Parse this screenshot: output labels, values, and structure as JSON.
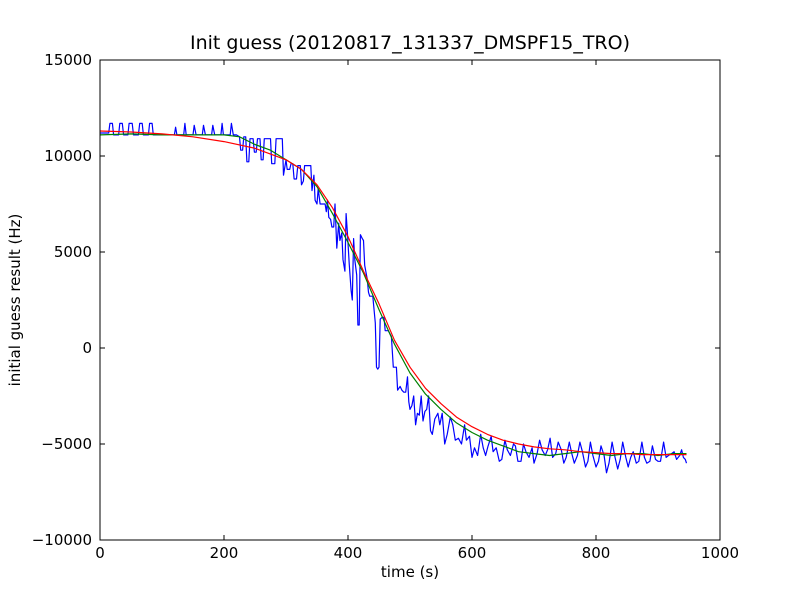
{
  "chart_data": {
    "type": "line",
    "title": "Init guess (20120817_131337_DMSPF15_TRO)",
    "xlabel": "time (s)",
    "ylabel": "initial guess result (Hz)",
    "xlim": [
      0,
      1000
    ],
    "ylim": [
      -10000,
      15000
    ],
    "x_ticks": [
      0,
      200,
      400,
      600,
      800,
      1000
    ],
    "y_ticks": [
      -10000,
      -5000,
      0,
      5000,
      10000,
      15000
    ],
    "x_tick_labels": [
      "0",
      "200",
      "400",
      "600",
      "800",
      "1000"
    ],
    "y_tick_labels": [
      "−10000",
      "−5000",
      "0",
      "5000",
      "10000",
      "15000"
    ],
    "grid": false,
    "legend": "none",
    "series": [
      {
        "color": "#0000ff",
        "points": [
          [
            0,
            11200
          ],
          [
            14,
            11200
          ],
          [
            16,
            11700
          ],
          [
            20,
            11700
          ],
          [
            22,
            11100
          ],
          [
            30,
            11100
          ],
          [
            32,
            11700
          ],
          [
            36,
            11700
          ],
          [
            38,
            11100
          ],
          [
            45,
            11100
          ],
          [
            47,
            11700
          ],
          [
            52,
            11700
          ],
          [
            54,
            11100
          ],
          [
            62,
            11100
          ],
          [
            64,
            11700
          ],
          [
            68,
            11700
          ],
          [
            70,
            11100
          ],
          [
            78,
            11100
          ],
          [
            80,
            11700
          ],
          [
            84,
            11700
          ],
          [
            86,
            11100
          ],
          [
            120,
            11100
          ],
          [
            122,
            11500
          ],
          [
            124,
            11100
          ],
          [
            135,
            11100
          ],
          [
            137,
            11700
          ],
          [
            139,
            11100
          ],
          [
            150,
            11100
          ],
          [
            152,
            11600
          ],
          [
            155,
            11100
          ],
          [
            165,
            11100
          ],
          [
            167,
            11600
          ],
          [
            170,
            11100
          ],
          [
            180,
            11100
          ],
          [
            182,
            11600
          ],
          [
            185,
            11100
          ],
          [
            195,
            11100
          ],
          [
            197,
            11700
          ],
          [
            199,
            11100
          ],
          [
            210,
            11100
          ],
          [
            212,
            11700
          ],
          [
            215,
            11100
          ],
          [
            220,
            11100
          ],
          [
            225,
            11000
          ],
          [
            227,
            10300
          ],
          [
            230,
            10300
          ],
          [
            232,
            11000
          ],
          [
            235,
            11000
          ],
          [
            237,
            9700
          ],
          [
            240,
            9700
          ],
          [
            242,
            10900
          ],
          [
            247,
            10900
          ],
          [
            249,
            10200
          ],
          [
            252,
            10200
          ],
          [
            254,
            10900
          ],
          [
            258,
            10900
          ],
          [
            260,
            9800
          ],
          [
            263,
            9800
          ],
          [
            265,
            10900
          ],
          [
            275,
            10900
          ],
          [
            277,
            9600
          ],
          [
            282,
            9600
          ],
          [
            284,
            10900
          ],
          [
            294,
            10900
          ],
          [
            296,
            9000
          ],
          [
            300,
            9800
          ],
          [
            302,
            9300
          ],
          [
            306,
            9300
          ],
          [
            308,
            9600
          ],
          [
            311,
            9600
          ],
          [
            313,
            8800
          ],
          [
            317,
            8800
          ],
          [
            319,
            9500
          ],
          [
            323,
            9500
          ],
          [
            325,
            8500
          ],
          [
            328,
            8700
          ],
          [
            330,
            9500
          ],
          [
            340,
            9500
          ],
          [
            342,
            8200
          ],
          [
            345,
            9000
          ],
          [
            347,
            7700
          ],
          [
            350,
            7500
          ],
          [
            352,
            8300
          ],
          [
            355,
            7500
          ],
          [
            363,
            7500
          ],
          [
            365,
            7100
          ],
          [
            367,
            7700
          ],
          [
            369,
            6800
          ],
          [
            372,
            6700
          ],
          [
            374,
            6300
          ],
          [
            377,
            6300
          ],
          [
            379,
            7500
          ],
          [
            382,
            5200
          ],
          [
            385,
            6500
          ],
          [
            387,
            5600
          ],
          [
            390,
            6000
          ],
          [
            392,
            4600
          ],
          [
            395,
            4000
          ],
          [
            397,
            7000
          ],
          [
            399,
            6000
          ],
          [
            402,
            4400
          ],
          [
            405,
            3000
          ],
          [
            407,
            2500
          ],
          [
            409,
            5700
          ],
          [
            411,
            4600
          ],
          [
            414,
            3800
          ],
          [
            416,
            1200
          ],
          [
            418,
            1200
          ],
          [
            420,
            5900
          ],
          [
            423,
            5700
          ],
          [
            425,
            5600
          ],
          [
            427,
            4300
          ],
          [
            431,
            3600
          ],
          [
            433,
            2900
          ],
          [
            435,
            2700
          ],
          [
            440,
            2700
          ],
          [
            444,
            1300
          ],
          [
            446,
            -1000
          ],
          [
            448,
            -1100
          ],
          [
            450,
            -1000
          ],
          [
            452,
            1500
          ],
          [
            455,
            1600
          ],
          [
            458,
            1600
          ],
          [
            460,
            900
          ],
          [
            465,
            900
          ],
          [
            470,
            600
          ],
          [
            473,
            -1000
          ],
          [
            478,
            -1000
          ],
          [
            480,
            -2200
          ],
          [
            484,
            -2000
          ],
          [
            487,
            -2200
          ],
          [
            490,
            -2300
          ],
          [
            493,
            -2300
          ],
          [
            496,
            -1500
          ],
          [
            498,
            -2800
          ],
          [
            500,
            -3200
          ],
          [
            503,
            -3000
          ],
          [
            506,
            -2500
          ],
          [
            509,
            -4000
          ],
          [
            512,
            -3400
          ],
          [
            515,
            -3500
          ],
          [
            518,
            -2500
          ],
          [
            521,
            -3800
          ],
          [
            524,
            -3300
          ],
          [
            527,
            -3200
          ],
          [
            530,
            -2500
          ],
          [
            533,
            -4300
          ],
          [
            536,
            -4500
          ],
          [
            540,
            -3700
          ],
          [
            545,
            -3400
          ],
          [
            548,
            -4000
          ],
          [
            552,
            -3400
          ],
          [
            556,
            -5000
          ],
          [
            560,
            -4500
          ],
          [
            565,
            -3600
          ],
          [
            569,
            -4000
          ],
          [
            573,
            -4800
          ],
          [
            578,
            -4700
          ],
          [
            583,
            -5000
          ],
          [
            588,
            -4000
          ],
          [
            591,
            -4800
          ],
          [
            596,
            -4600
          ],
          [
            600,
            -5700
          ],
          [
            604,
            -5200
          ],
          [
            609,
            -5600
          ],
          [
            614,
            -4500
          ],
          [
            618,
            -5200
          ],
          [
            622,
            -5600
          ],
          [
            626,
            -5100
          ],
          [
            631,
            -4600
          ],
          [
            634,
            -5400
          ],
          [
            639,
            -5200
          ],
          [
            644,
            -5900
          ],
          [
            648,
            -5800
          ],
          [
            653,
            -4800
          ],
          [
            657,
            -5300
          ],
          [
            662,
            -5600
          ],
          [
            667,
            -5000
          ],
          [
            670,
            -5100
          ],
          [
            674,
            -5900
          ],
          [
            679,
            -5900
          ],
          [
            683,
            -5000
          ],
          [
            687,
            -5400
          ],
          [
            692,
            -5700
          ],
          [
            697,
            -5200
          ],
          [
            700,
            -6000
          ],
          [
            705,
            -5500
          ],
          [
            709,
            -4800
          ],
          [
            713,
            -5300
          ],
          [
            718,
            -5600
          ],
          [
            722,
            -5300
          ],
          [
            726,
            -4700
          ],
          [
            730,
            -5700
          ],
          [
            735,
            -5500
          ],
          [
            739,
            -4900
          ],
          [
            744,
            -5300
          ],
          [
            748,
            -6000
          ],
          [
            752,
            -5700
          ],
          [
            757,
            -4900
          ],
          [
            761,
            -5500
          ],
          [
            765,
            -6000
          ],
          [
            770,
            -5600
          ],
          [
            774,
            -4900
          ],
          [
            778,
            -5400
          ],
          [
            783,
            -6200
          ],
          [
            787,
            -5900
          ],
          [
            791,
            -4900
          ],
          [
            795,
            -5600
          ],
          [
            800,
            -6200
          ],
          [
            804,
            -5900
          ],
          [
            808,
            -5100
          ],
          [
            813,
            -5600
          ],
          [
            817,
            -6500
          ],
          [
            821,
            -6000
          ],
          [
            826,
            -4900
          ],
          [
            830,
            -5600
          ],
          [
            835,
            -6300
          ],
          [
            839,
            -5800
          ],
          [
            843,
            -4900
          ],
          [
            848,
            -5700
          ],
          [
            852,
            -6200
          ],
          [
            856,
            -5700
          ],
          [
            860,
            -5400
          ],
          [
            865,
            -6000
          ],
          [
            869,
            -5900
          ],
          [
            874,
            -4900
          ],
          [
            878,
            -5700
          ],
          [
            882,
            -6000
          ],
          [
            887,
            -5900
          ],
          [
            891,
            -5100
          ],
          [
            896,
            -5800
          ],
          [
            900,
            -5900
          ],
          [
            904,
            -5900
          ],
          [
            909,
            -4900
          ],
          [
            913,
            -5700
          ],
          [
            917,
            -5600
          ],
          [
            922,
            -5500
          ],
          [
            926,
            -5400
          ],
          [
            930,
            -5800
          ],
          [
            935,
            -5600
          ],
          [
            938,
            -5300
          ],
          [
            941,
            -5700
          ],
          [
            944,
            -5800
          ],
          [
            946,
            -6000
          ]
        ]
      },
      {
        "color": "#008000",
        "points": [
          [
            0,
            11100
          ],
          [
            50,
            11150
          ],
          [
            100,
            11100
          ],
          [
            150,
            11100
          ],
          [
            200,
            11100
          ],
          [
            225,
            11000
          ],
          [
            250,
            10600
          ],
          [
            275,
            10300
          ],
          [
            300,
            9800
          ],
          [
            325,
            9300
          ],
          [
            350,
            8400
          ],
          [
            375,
            7000
          ],
          [
            400,
            5500
          ],
          [
            425,
            3900
          ],
          [
            450,
            2000
          ],
          [
            475,
            200
          ],
          [
            500,
            -1300
          ],
          [
            525,
            -2400
          ],
          [
            550,
            -3200
          ],
          [
            575,
            -3900
          ],
          [
            600,
            -4400
          ],
          [
            625,
            -4800
          ],
          [
            650,
            -5100
          ],
          [
            675,
            -5400
          ],
          [
            700,
            -5500
          ],
          [
            725,
            -5600
          ],
          [
            750,
            -5500
          ],
          [
            775,
            -5400
          ],
          [
            800,
            -5500
          ],
          [
            825,
            -5600
          ],
          [
            850,
            -5500
          ],
          [
            875,
            -5500
          ],
          [
            900,
            -5600
          ],
          [
            925,
            -5500
          ],
          [
            946,
            -5500
          ]
        ]
      },
      {
        "color": "#ff0000",
        "points": [
          [
            0,
            11300
          ],
          [
            50,
            11250
          ],
          [
            100,
            11150
          ],
          [
            150,
            11000
          ],
          [
            200,
            10750
          ],
          [
            250,
            10400
          ],
          [
            300,
            9800
          ],
          [
            325,
            9300
          ],
          [
            350,
            8500
          ],
          [
            375,
            7300
          ],
          [
            400,
            5800
          ],
          [
            425,
            4000
          ],
          [
            450,
            2300
          ],
          [
            475,
            400
          ],
          [
            500,
            -1000
          ],
          [
            525,
            -2100
          ],
          [
            550,
            -2900
          ],
          [
            575,
            -3600
          ],
          [
            600,
            -4100
          ],
          [
            625,
            -4500
          ],
          [
            650,
            -4800
          ],
          [
            675,
            -5000
          ],
          [
            700,
            -5150
          ],
          [
            725,
            -5250
          ],
          [
            750,
            -5300
          ],
          [
            775,
            -5400
          ],
          [
            800,
            -5450
          ],
          [
            825,
            -5500
          ],
          [
            850,
            -5500
          ],
          [
            875,
            -5550
          ],
          [
            900,
            -5550
          ],
          [
            925,
            -5550
          ],
          [
            946,
            -5550
          ]
        ]
      }
    ]
  }
}
